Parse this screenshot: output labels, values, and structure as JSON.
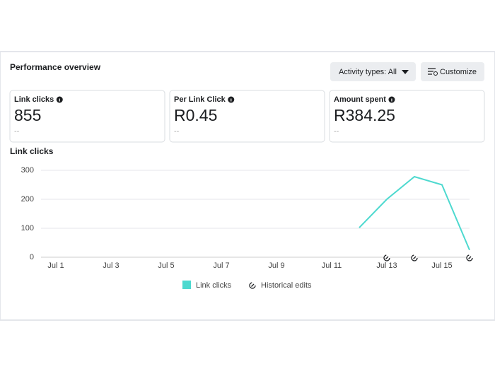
{
  "header": {
    "title": "Performance overview",
    "filter_button": "Activity types: All",
    "customize_button": "Customize"
  },
  "cards": [
    {
      "label": "Link clicks",
      "value": "855",
      "delta": "--"
    },
    {
      "label": "Per Link Click",
      "value": "R0.45",
      "delta": "--"
    },
    {
      "label": "Amount spent",
      "value": "R384.25",
      "delta": "--"
    }
  ],
  "chart_data": {
    "type": "line",
    "title": "Link clicks",
    "categories": [
      "Jul 1",
      null,
      "Jul 3",
      null,
      "Jul 5",
      null,
      "Jul 7",
      null,
      "Jul 9",
      null,
      "Jul 11",
      null,
      "Jul 13",
      null,
      "Jul 15",
      null
    ],
    "series": [
      {
        "name": "Link clicks",
        "color": "#4dd9cf",
        "values": [
          null,
          null,
          null,
          null,
          null,
          null,
          null,
          null,
          null,
          null,
          null,
          102,
          200,
          278,
          250,
          25
        ]
      }
    ],
    "ylim": [
      0,
      300
    ],
    "yticks": [
      0,
      100,
      200,
      300
    ],
    "grid": true,
    "legend_extra": "Historical edits"
  }
}
